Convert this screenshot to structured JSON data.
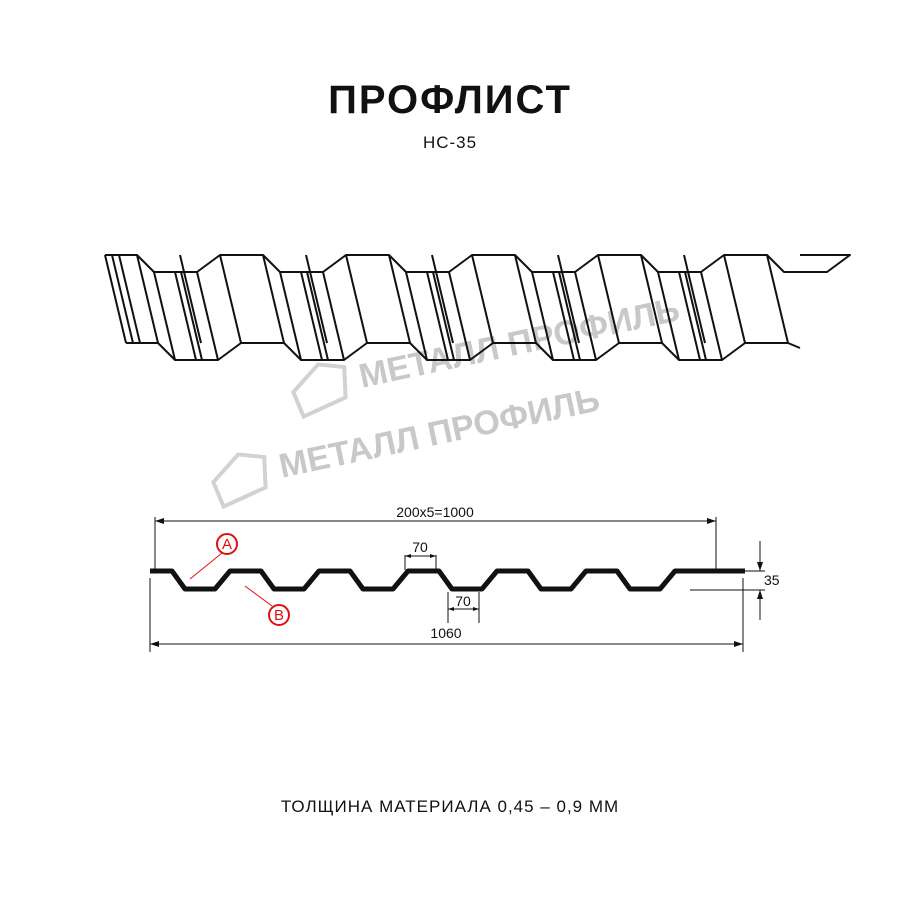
{
  "header": {
    "title": "ПРОФЛИСТ",
    "subtitle": "НС-35"
  },
  "watermark": {
    "logo_text": "МЕТАЛЛ ПРОФИЛЬ"
  },
  "profile": {
    "dimensions": {
      "pitch_total": "200x5=1000",
      "top_shelf": "70",
      "bottom_shelf": "70",
      "height": "35",
      "full_width": "1060"
    },
    "markers": [
      {
        "label": "A"
      },
      {
        "label": "B"
      }
    ],
    "marker_color": "#e01010"
  },
  "footer": {
    "text": "ТОЛЩИНА МАТЕРИАЛА 0,45 – 0,9 ММ"
  }
}
